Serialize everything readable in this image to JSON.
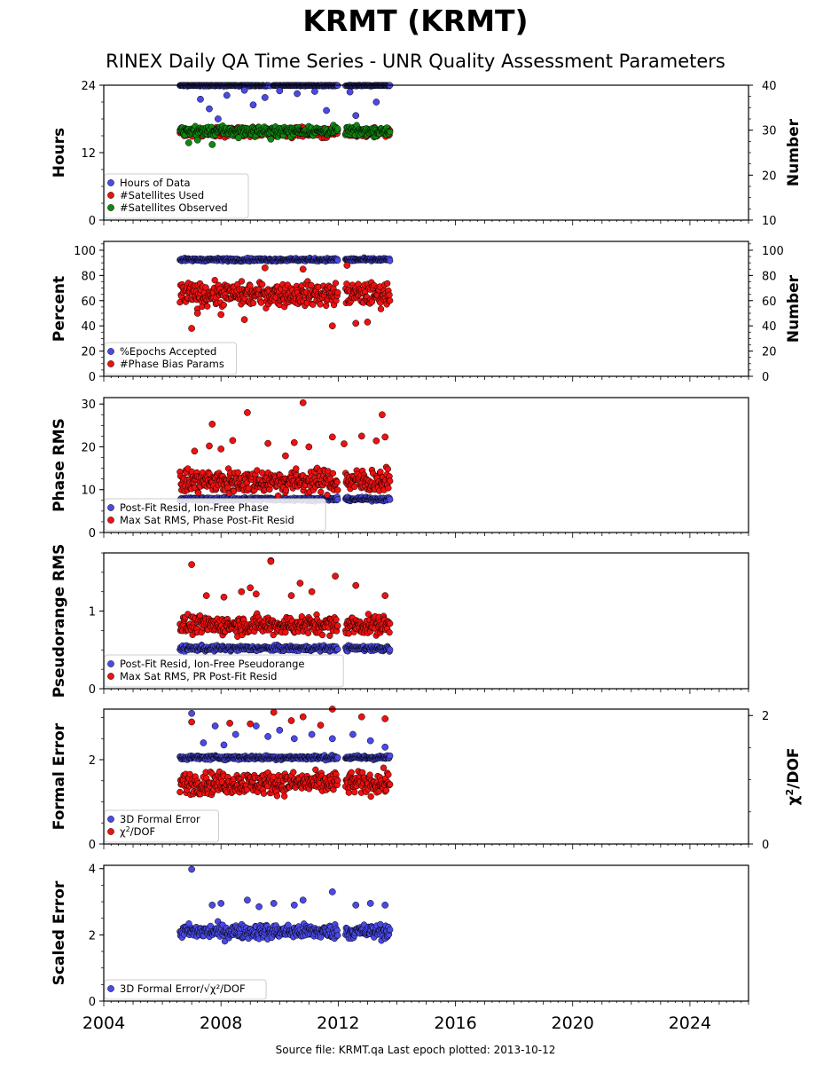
{
  "title": "KRMT (KRMT)",
  "subtitle": "RINEX Daily QA Time Series - UNR Quality Assessment Parameters",
  "footer": "Source file: KRMT.qa Last epoch plotted: 2013-10-12",
  "colors": {
    "blue": "#4a4ae8",
    "red": "#ee1111",
    "green": "#118811",
    "edge": "#000000"
  },
  "chart_data": [
    {
      "type": "scatter",
      "ylabel": "Hours",
      "ylabel_right": "Number",
      "ylim": [
        0,
        24
      ],
      "yticks": [
        0,
        12,
        24
      ],
      "ylim_right": [
        10,
        40
      ],
      "yticks_right": [
        10,
        20,
        30,
        40
      ],
      "legend": "lower-left",
      "series": [
        {
          "name": "Hours of Data",
          "color": "blue",
          "axis": "left",
          "typical": 24.0,
          "spread": 0.3,
          "outliers": [
            [
              2007.3,
              21.5
            ],
            [
              2007.6,
              19.8
            ],
            [
              2008.2,
              22.2
            ],
            [
              2009.1,
              20.5
            ],
            [
              2009.5,
              21.8
            ],
            [
              2010.0,
              23.0
            ],
            [
              2011.6,
              19.5
            ],
            [
              2012.4,
              22.8
            ],
            [
              2012.6,
              18.6
            ],
            [
              2013.3,
              21.0
            ],
            [
              2007.9,
              18.0
            ],
            [
              2008.8,
              23.1
            ],
            [
              2010.6,
              22.5
            ],
            [
              2011.2,
              22.9
            ]
          ],
          "ranges": [
            [
              2006.6,
              2008.0
            ],
            [
              2007.6,
              2009.6
            ],
            [
              2009.8,
              2012.0
            ],
            [
              2012.3,
              2013.8
            ]
          ]
        },
        {
          "name": "#Satellites Used",
          "color": "red",
          "axis": "right",
          "typical": 29.5,
          "spread": 1.0,
          "outliers": []
        },
        {
          "name": "#Satellites Observed",
          "color": "green",
          "axis": "right",
          "typical": 29.8,
          "spread": 1.0,
          "outliers": [
            [
              2006.9,
              27.2
            ],
            [
              2007.2,
              27.8
            ],
            [
              2007.7,
              26.8
            ],
            [
              2008.6,
              28.3
            ],
            [
              2009.7,
              28.0
            ]
          ]
        }
      ]
    },
    {
      "type": "scatter",
      "ylabel": "Percent",
      "ylabel_right": "Number",
      "ylim": [
        0,
        107
      ],
      "yticks": [
        0,
        20,
        40,
        60,
        80,
        100
      ],
      "ylim_right": [
        0,
        107
      ],
      "yticks_right": [
        0,
        20,
        40,
        60,
        80,
        100
      ],
      "legend": "lower-left",
      "series": [
        {
          "name": "%Epochs Accepted",
          "color": "blue",
          "axis": "left",
          "typical": 92.5,
          "spread": 1.2,
          "outliers": []
        },
        {
          "name": "#Phase Bias Params",
          "color": "red",
          "axis": "left",
          "typical": 65.0,
          "spread": 9.0,
          "outliers": [
            [
              2007.0,
              38.0
            ],
            [
              2008.8,
              45.0
            ],
            [
              2011.8,
              40.0
            ],
            [
              2012.6,
              42.0
            ],
            [
              2013.0,
              43.0
            ],
            [
              2007.2,
              50.0
            ],
            [
              2008.0,
              49.0
            ],
            [
              2009.5,
              86.0
            ],
            [
              2010.8,
              85.0
            ],
            [
              2012.3,
              88.0
            ]
          ]
        }
      ]
    },
    {
      "type": "scatter",
      "ylabel": "Phase RMS",
      "ylim": [
        0,
        31.5
      ],
      "yticks": [
        0,
        10,
        20,
        30
      ],
      "legend": "lower-left",
      "series": [
        {
          "name": "Post-Fit Resid, Ion-Free Phase",
          "color": "blue",
          "axis": "left",
          "typical": 7.8,
          "spread": 0.4,
          "outliers": []
        },
        {
          "name": "Max Sat RMS, Phase Post-Fit Resid",
          "color": "red",
          "axis": "left",
          "typical": 12.0,
          "spread": 2.8,
          "outliers": [
            [
              2007.7,
              25.3
            ],
            [
              2008.9,
              28.0
            ],
            [
              2010.8,
              30.3
            ],
            [
              2013.5,
              27.5
            ],
            [
              2007.6,
              20.2
            ],
            [
              2008.4,
              21.5
            ],
            [
              2009.6,
              20.8
            ],
            [
              2010.5,
              21.0
            ],
            [
              2011.8,
              22.3
            ],
            [
              2012.8,
              22.5
            ],
            [
              2013.6,
              22.3
            ],
            [
              2008.0,
              19.5
            ],
            [
              2011.0,
              20.0
            ],
            [
              2012.2,
              20.7
            ],
            [
              2013.3,
              21.4
            ],
            [
              2010.2,
              17.9
            ],
            [
              2007.1,
              19.0
            ]
          ]
        }
      ]
    },
    {
      "type": "scatter",
      "ylabel": "Pseudorange RMS",
      "ylim": [
        0,
        1.75
      ],
      "yticks": [
        0,
        1
      ],
      "legend": "lower-left",
      "series": [
        {
          "name": "Post-Fit Resid, Ion-Free Pseudorange",
          "color": "blue",
          "axis": "left",
          "typical": 0.52,
          "spread": 0.035,
          "outliers": []
        },
        {
          "name": "Max Sat RMS, PR Post-Fit Resid",
          "color": "red",
          "axis": "left",
          "typical": 0.82,
          "spread": 0.12,
          "outliers": [
            [
              2007.0,
              1.6
            ],
            [
              2009.7,
              1.65
            ],
            [
              2009.7,
              1.64
            ],
            [
              2010.7,
              1.36
            ],
            [
              2011.9,
              1.45
            ],
            [
              2012.6,
              1.33
            ],
            [
              2007.5,
              1.2
            ],
            [
              2008.1,
              1.18
            ],
            [
              2008.7,
              1.25
            ],
            [
              2009.2,
              1.22
            ],
            [
              2010.4,
              1.2
            ],
            [
              2011.1,
              1.25
            ],
            [
              2013.6,
              1.2
            ],
            [
              2009.0,
              1.3
            ]
          ]
        }
      ]
    },
    {
      "type": "scatter",
      "ylabel": "Formal Error",
      "ylabel_right": "χ²/DOF",
      "ylim": [
        0,
        3.2
      ],
      "yticks": [
        0,
        2
      ],
      "ylim_right": [
        0,
        2.1
      ],
      "yticks_right": [
        0,
        2
      ],
      "legend": "lower-left",
      "series": [
        {
          "name": "3D Formal Error",
          "color": "blue",
          "axis": "left",
          "typical": 2.05,
          "spread": 0.05,
          "outliers": [
            [
              2007.0,
              3.1
            ],
            [
              2007.8,
              2.8
            ],
            [
              2008.5,
              2.6
            ],
            [
              2009.2,
              2.8
            ],
            [
              2009.6,
              2.55
            ],
            [
              2010.0,
              2.7
            ],
            [
              2010.5,
              2.5
            ],
            [
              2011.1,
              2.6
            ],
            [
              2011.8,
              2.5
            ],
            [
              2012.5,
              2.6
            ],
            [
              2013.1,
              2.45
            ],
            [
              2013.6,
              2.3
            ],
            [
              2007.4,
              2.4
            ],
            [
              2008.1,
              2.35
            ]
          ]
        },
        {
          "name": "χ²/DOF",
          "color": "red",
          "axis": "right",
          "typical": 0.95,
          "spread": 0.17,
          "outliers": [
            [
              2009.8,
              2.05
            ],
            [
              2010.8,
              1.98
            ],
            [
              2011.8,
              2.1
            ],
            [
              2012.8,
              1.98
            ],
            [
              2007.0,
              1.9
            ],
            [
              2008.3,
              1.88
            ],
            [
              2009.0,
              1.87
            ],
            [
              2010.4,
              1.92
            ],
            [
              2011.4,
              1.85
            ],
            [
              2013.6,
              1.95
            ]
          ]
        }
      ]
    },
    {
      "type": "scatter",
      "ylabel": "Scaled Error",
      "ylim": [
        0,
        4.1
      ],
      "yticks": [
        0,
        2,
        4
      ],
      "xlim": [
        2004,
        2026
      ],
      "xticks": [
        2004,
        2008,
        2012,
        2016,
        2020,
        2024
      ],
      "legend": "lower-left",
      "series": [
        {
          "name": "3D Formal Error/√χ²/DOF",
          "color": "blue",
          "axis": "left",
          "typical": 2.1,
          "spread": 0.22,
          "outliers": [
            [
              2007.0,
              3.98
            ],
            [
              2007.7,
              2.9
            ],
            [
              2008.0,
              2.95
            ],
            [
              2008.9,
              3.05
            ],
            [
              2009.8,
              2.95
            ],
            [
              2010.8,
              3.05
            ],
            [
              2011.8,
              3.3
            ],
            [
              2012.6,
              2.9
            ],
            [
              2013.1,
              2.95
            ],
            [
              2013.6,
              2.9
            ],
            [
              2010.5,
              2.9
            ],
            [
              2009.3,
              2.85
            ]
          ]
        }
      ]
    }
  ],
  "data_span": {
    "start": 2006.6,
    "end": 2013.78,
    "gap": [
      2012.0,
      2012.25
    ]
  }
}
